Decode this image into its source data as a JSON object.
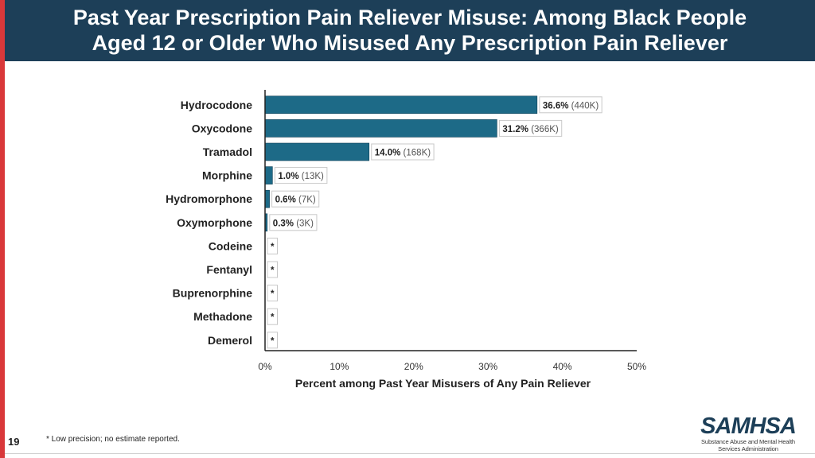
{
  "header": {
    "title_line1": "Past Year Prescription Pain Reliever Misuse: Among Black People",
    "title_line2": "Aged 12 or Older Who Misused Any Prescription Pain Reliever"
  },
  "chart_data": {
    "type": "bar",
    "orientation": "horizontal",
    "categories": [
      "Hydrocodone",
      "Oxycodone",
      "Tramadol",
      "Morphine",
      "Hydromorphone",
      "Oxymorphone",
      "Codeine",
      "Fentanyl",
      "Buprenorphine",
      "Methadone",
      "Demerol"
    ],
    "values": [
      36.6,
      31.2,
      14.0,
      1.0,
      0.6,
      0.3,
      null,
      null,
      null,
      null,
      null
    ],
    "value_labels": [
      "36.6%",
      "31.2%",
      "14.0%",
      "1.0%",
      "0.6%",
      "0.3%",
      "*",
      "*",
      "*",
      "*",
      "*"
    ],
    "count_labels": [
      "(440K)",
      "(366K)",
      "(168K)",
      "(13K)",
      "(7K)",
      "(3K)",
      "",
      "",
      "",
      "",
      ""
    ],
    "xlabel": "Percent among Past Year Misusers of Any Pain Reliever",
    "ylabel": "",
    "xlim": [
      0,
      50
    ],
    "xticks": [
      "0%",
      "10%",
      "20%",
      "30%",
      "40%",
      "50%"
    ],
    "grid": false,
    "bar_color": "#1d6a87"
  },
  "footer": {
    "page_number": "19",
    "note": "* Low precision; no estimate reported."
  },
  "logo": {
    "wordmark": "SAMHSA",
    "subtitle_line1": "Substance Abuse and Mental Health",
    "subtitle_line2": "Services Administration"
  }
}
